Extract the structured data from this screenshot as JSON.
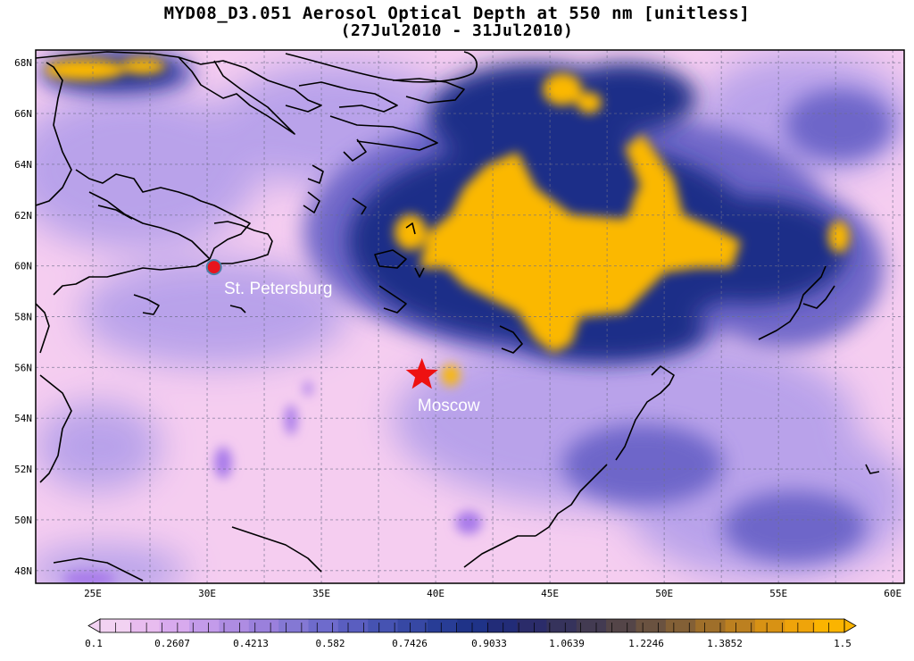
{
  "title": {
    "line1": "MYD08_D3.051 Aerosol Optical Depth at 550 nm [unitless]",
    "line2": "(27Jul2010 - 31Jul2010)"
  },
  "map": {
    "lon_range": [
      22.5,
      60.5
    ],
    "lat_range": [
      47.5,
      68.5
    ],
    "lat_ticks": [
      {
        "value": 48,
        "label": "48N"
      },
      {
        "value": 50,
        "label": "50N"
      },
      {
        "value": 52,
        "label": "52N"
      },
      {
        "value": 54,
        "label": "54N"
      },
      {
        "value": 56,
        "label": "56N"
      },
      {
        "value": 58,
        "label": "58N"
      },
      {
        "value": 60,
        "label": "60N"
      },
      {
        "value": 62,
        "label": "62N"
      },
      {
        "value": 64,
        "label": "64N"
      },
      {
        "value": 66,
        "label": "66N"
      },
      {
        "value": 68,
        "label": "68N"
      }
    ],
    "lon_ticks": [
      {
        "value": 25,
        "label": "25E"
      },
      {
        "value": 30,
        "label": "30E"
      },
      {
        "value": 35,
        "label": "35E"
      },
      {
        "value": 40,
        "label": "40E"
      },
      {
        "value": 45,
        "label": "45E"
      },
      {
        "value": 50,
        "label": "50E"
      },
      {
        "value": 55,
        "label": "55E"
      },
      {
        "value": 60,
        "label": "60E"
      }
    ],
    "markers": [
      {
        "name": "St. Petersburg",
        "label": "St. Petersburg",
        "lon": 30.3,
        "lat": 59.95,
        "symbol": "circle",
        "color": "#e8141c"
      },
      {
        "name": "Moscow",
        "label": "Moscow",
        "lon": 39.4,
        "lat": 55.7,
        "symbol": "star",
        "color": "#ee1111"
      }
    ],
    "colors": {
      "low": "#f5cdf0",
      "mid_low": "#b19ae8",
      "mid": "#5a5cc0",
      "high_mid": "#1e2f8a",
      "high": "#fbb800"
    }
  },
  "colorbar": {
    "min": 0.1,
    "max": 1.5,
    "labels": [
      "0.1",
      "0.2607",
      "0.4213",
      "0.582",
      "0.7426",
      "0.9033",
      "1.0639",
      "1.2246",
      "1.3852",
      "1.5"
    ],
    "colors": [
      "#f2d2f2",
      "#e8bcef",
      "#d8aaee",
      "#c39bea",
      "#ae8ce2",
      "#9a80dc",
      "#8478d4",
      "#6e6bcc",
      "#5a5ec0",
      "#4653b2",
      "#3748a4",
      "#283d96",
      "#1f3388",
      "#222c78",
      "#2b2c6a",
      "#36335c",
      "#433b52",
      "#544548",
      "#6a5240",
      "#836036",
      "#9f6f2a",
      "#bc8020",
      "#d89214",
      "#efa40a",
      "#fbb400"
    ]
  }
}
